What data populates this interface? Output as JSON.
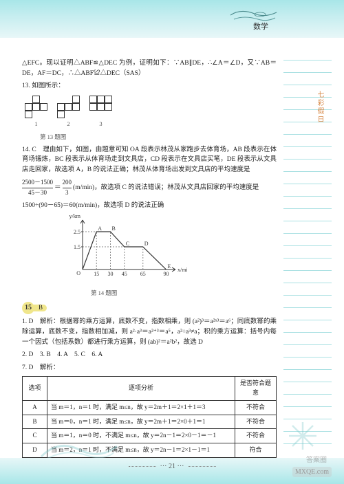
{
  "subject": "数学",
  "sideLabel": "七彩假日",
  "topText": "△EFC。现以证明△ABF≌△DEC 为例，证明如下：∵AB∥DE，∴∠A＝∠D，又∵AB＝DE，AF＝DC，∴△ABF≌△DEC（SAS）",
  "q13": "13. 如图所示：",
  "fig1cap": "第 13 题图",
  "figLabels": [
    "1",
    "2",
    "3"
  ],
  "q14a": "14. C　理由如下，如图，由题意可知 OA 段表示林茂从家跑步去体育场，AB 段表示在体育场锻炼，BC 段表示从体育场走到文具店，CD 段表示在文具店买笔，DE 段表示从文具店走回家，故选项 A，B 的说法正确；林茂从体育场出发到文具店的平均速度是",
  "q14b_frac_l": "2500－1500",
  "q14b_frac_ld": "45－30",
  "q14b_mid": "＝",
  "q14b_frac_r": "200",
  "q14b_frac_rd": "3",
  "q14b_tail": "(m/min)，故选项 C 的说法错误；林茂从文具店回家的平均速度是",
  "q14c": "1500÷(90－65)＝60(m/min)，故选项 D 的说法正确",
  "graph": {
    "ylabel": "y/km",
    "xlabel": "x/min",
    "xticks": [
      "O",
      "15",
      "30",
      "45",
      "65",
      "90"
    ],
    "yticks": [
      "1.5",
      "2.5"
    ],
    "pts": {
      "A": [
        15,
        2.5
      ],
      "B": [
        30,
        2.5
      ],
      "C": [
        45,
        1.5
      ],
      "D": [
        65,
        1.5
      ],
      "E": [
        90,
        0
      ]
    },
    "color": "#333"
  },
  "fig2cap": "第 14 题图",
  "badge": {
    "n": "15",
    "s": "B"
  },
  "p1": "1. D　解析：根据幂的乘方运算，底数不变，指数相乘，则 (a²)³＝a²ˣ³＝a⁶；同底数幂的乘除运算，底数不变，指数相加减，则 a²·a³＝a²⁺³＝a⁵，a²÷a³≠a；积的乘方运算：括号内每一个因式（包括系数）都进行乘方运算，则 (ab)²＝a²b²，故选 D",
  "p2": "2. D　3. B　4. A　5. C　6. A",
  "p7": "7. D　解析：",
  "table": {
    "headers": [
      "选项",
      "逐项分析",
      "是否符合题意"
    ],
    "rows": [
      [
        "A",
        "当 m＝1，n＝1 时，满足 m≤n，故 y＝2m＋1＝2×1＋1＝3",
        "不符合"
      ],
      [
        "B",
        "当 m＝0，n＝1 时，满足 m≤n，故 y＝2m＋1＝2×0＋1＝1",
        "不符合"
      ],
      [
        "C",
        "当 m＝1，n＝0 时，不满足 m≤n，故 y＝2n－1＝2×0－1＝－1",
        "不符合"
      ],
      [
        "D",
        "当 m＝2，n＝1 时，不满足 m≤n，故 y＝2n－1＝2×1－1＝1",
        "符合"
      ]
    ]
  },
  "pageNum": "21",
  "wm1": "答案圈",
  "wm2": "MXQE.com"
}
